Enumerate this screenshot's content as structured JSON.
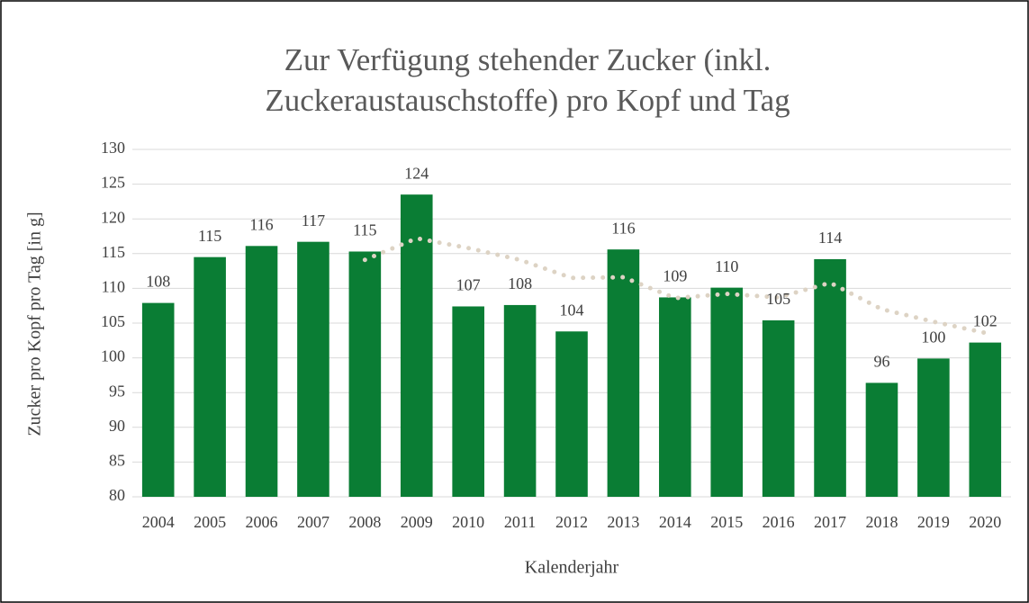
{
  "chart_data": {
    "type": "bar",
    "title": [
      "Zur Verfügung stehender Zucker (inkl.",
      "Zuckeraustauschstoffe) pro Kopf und Tag"
    ],
    "ylabel": "Zucker pro Kopf pro Tag [in g]",
    "xlabel": "Kalenderjahr",
    "categories": [
      "2004",
      "2005",
      "2006",
      "2007",
      "2008",
      "2009",
      "2010",
      "2011",
      "2012",
      "2013",
      "2014",
      "2015",
      "2016",
      "2017",
      "2018",
      "2019",
      "2020"
    ],
    "values": [
      107.9,
      114.5,
      116.1,
      116.7,
      115.3,
      123.5,
      107.4,
      107.6,
      103.8,
      115.6,
      108.7,
      110.1,
      105.4,
      114.2,
      96.4,
      99.9,
      102.2
    ],
    "value_labels": [
      "108",
      "115",
      "116",
      "117",
      "115",
      "124",
      "107",
      "108",
      "104",
      "116",
      "109",
      "110",
      "105",
      "114",
      "96",
      "100",
      "102"
    ],
    "color": "#0a7d34",
    "trend": {
      "values": [
        null,
        null,
        null,
        null,
        114.1,
        117.2,
        115.8,
        114.1,
        111.5,
        111.6,
        108.6,
        109.2,
        108.7,
        110.8,
        107.0,
        105.2,
        103.6
      ],
      "color": "#ddd3c4"
    },
    "ylim": [
      80,
      130
    ],
    "yticks": [
      80,
      85,
      90,
      95,
      100,
      105,
      110,
      115,
      120,
      125,
      130
    ],
    "grid": true
  }
}
